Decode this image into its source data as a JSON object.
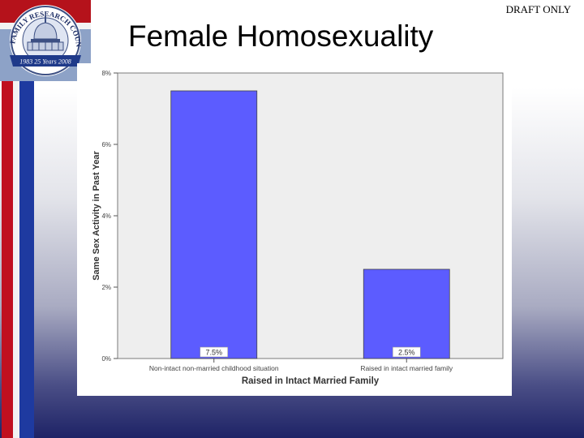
{
  "header": {
    "draft_label": "DRAFT ONLY",
    "title": "Female Homosexuality"
  },
  "logo": {
    "arc_text": "FAMILY RESEARCH COUNCIL",
    "banner_text": "1983 25 Years 2008"
  },
  "colors": {
    "bar": "#5c5cff",
    "plot_bg": "#eeeeee",
    "stripe_red": "#c0101f",
    "stripe_blue": "#1e3aa0"
  },
  "chart_data": {
    "type": "bar",
    "title": "",
    "xlabel": "Raised in Intact Married Family",
    "ylabel": "Same Sex Activity in Past Year",
    "categories": [
      "Non-intact non-married childhood situation",
      "Raised in intact married family"
    ],
    "values": [
      7.5,
      2.5
    ],
    "data_labels": [
      "7.5%",
      "2.5%"
    ],
    "yticks": [
      0,
      2,
      4,
      6,
      8
    ],
    "ytick_labels": [
      "0%",
      "2%",
      "4%",
      "6%",
      "8%"
    ],
    "ylim": [
      0,
      8
    ],
    "grid": false,
    "legend": "none"
  }
}
